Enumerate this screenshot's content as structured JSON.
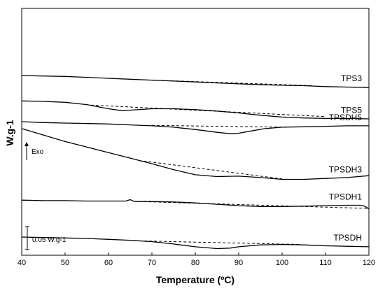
{
  "chart_data": {
    "type": "line",
    "xlabel": "Temperature (ºC)",
    "ylabel": "W.g-1",
    "xlim": [
      40,
      120
    ],
    "x_ticks": [
      40,
      50,
      60,
      70,
      80,
      90,
      100,
      110,
      120
    ],
    "y_ticks_shown": false,
    "annotations": {
      "exo": "Exo",
      "scale_bar": "0.05 W.g-1"
    },
    "series": [
      {
        "name": "TPS3",
        "offset": 0.35,
        "points": [
          [
            40,
            0.0
          ],
          [
            45,
            -0.001
          ],
          [
            50,
            -0.002
          ],
          [
            55,
            -0.004
          ],
          [
            60,
            -0.006
          ],
          [
            65,
            -0.008
          ],
          [
            70,
            -0.01
          ],
          [
            75,
            -0.012
          ],
          [
            80,
            -0.014
          ],
          [
            85,
            -0.016
          ],
          [
            90,
            -0.018
          ],
          [
            95,
            -0.02
          ],
          [
            100,
            -0.021
          ],
          [
            105,
            -0.022
          ],
          [
            110,
            -0.024
          ],
          [
            115,
            -0.025
          ],
          [
            120,
            -0.026
          ]
        ],
        "baseline": [
          [
            70,
            -0.01
          ],
          [
            107,
            -0.022
          ]
        ]
      },
      {
        "name": "TPS5",
        "offset": 0.295,
        "points": [
          [
            40,
            0.0
          ],
          [
            45,
            -0.001
          ],
          [
            50,
            -0.003
          ],
          [
            55,
            -0.008
          ],
          [
            60,
            -0.017
          ],
          [
            63,
            -0.021
          ],
          [
            65,
            -0.02
          ],
          [
            70,
            -0.017
          ],
          [
            75,
            -0.017
          ],
          [
            80,
            -0.019
          ],
          [
            85,
            -0.022
          ],
          [
            90,
            -0.026
          ],
          [
            95,
            -0.031
          ],
          [
            100,
            -0.035
          ],
          [
            105,
            -0.037
          ],
          [
            110,
            -0.038
          ],
          [
            115,
            -0.038
          ],
          [
            120,
            -0.039
          ]
        ],
        "baseline": [
          [
            56,
            -0.009
          ],
          [
            110,
            -0.034
          ]
        ]
      },
      {
        "name": "TPSDH5",
        "offset": 0.25,
        "points": [
          [
            40,
            0.0
          ],
          [
            45,
            -0.002
          ],
          [
            50,
            -0.003
          ],
          [
            55,
            -0.004
          ],
          [
            60,
            -0.005
          ],
          [
            65,
            -0.007
          ],
          [
            70,
            -0.009
          ],
          [
            75,
            -0.012
          ],
          [
            80,
            -0.017
          ],
          [
            85,
            -0.023
          ],
          [
            88,
            -0.026
          ],
          [
            90,
            -0.025
          ],
          [
            93,
            -0.02
          ],
          [
            96,
            -0.015
          ],
          [
            100,
            -0.012
          ],
          [
            105,
            -0.011
          ],
          [
            110,
            -0.01
          ],
          [
            115,
            -0.009
          ],
          [
            120,
            -0.009
          ]
        ],
        "baseline": [
          [
            70,
            -0.008
          ],
          [
            101,
            -0.012
          ]
        ]
      },
      {
        "name": "TPSDH3",
        "offset": 0.235,
        "points": [
          [
            40,
            0.0
          ],
          [
            45,
            -0.014
          ],
          [
            50,
            -0.028
          ],
          [
            55,
            -0.04
          ],
          [
            60,
            -0.052
          ],
          [
            65,
            -0.064
          ],
          [
            70,
            -0.076
          ],
          [
            75,
            -0.089
          ],
          [
            80,
            -0.1
          ],
          [
            85,
            -0.104
          ],
          [
            90,
            -0.103
          ],
          [
            95,
            -0.106
          ],
          [
            100,
            -0.11
          ],
          [
            105,
            -0.11
          ],
          [
            110,
            -0.108
          ],
          [
            115,
            -0.106
          ],
          [
            120,
            -0.102
          ]
        ],
        "baseline": [
          [
            67,
            -0.069
          ],
          [
            100,
            -0.109
          ]
        ]
      },
      {
        "name": "TPSDH1",
        "offset": 0.08,
        "points": [
          [
            40,
            0.0
          ],
          [
            45,
            -0.001
          ],
          [
            50,
            -0.001
          ],
          [
            55,
            -0.002
          ],
          [
            60,
            -0.002
          ],
          [
            64,
            -0.002
          ],
          [
            65,
            0.001
          ],
          [
            66,
            -0.003
          ],
          [
            70,
            -0.003
          ],
          [
            75,
            -0.004
          ],
          [
            80,
            -0.006
          ],
          [
            85,
            -0.009
          ],
          [
            90,
            -0.012
          ],
          [
            95,
            -0.014
          ],
          [
            100,
            -0.014
          ],
          [
            105,
            -0.013
          ],
          [
            110,
            -0.012
          ],
          [
            115,
            -0.011
          ],
          [
            118,
            -0.011
          ],
          [
            119,
            -0.013
          ],
          [
            120,
            -0.019
          ]
        ],
        "baseline": [
          [
            67,
            -0.003
          ],
          [
            120,
            -0.018
          ]
        ]
      },
      {
        "name": "TPSDH",
        "offset": 0.0,
        "points": [
          [
            40,
            0.0
          ],
          [
            45,
            -0.001
          ],
          [
            50,
            -0.002
          ],
          [
            55,
            -0.003
          ],
          [
            60,
            -0.005
          ],
          [
            65,
            -0.007
          ],
          [
            70,
            -0.01
          ],
          [
            75,
            -0.015
          ],
          [
            80,
            -0.021
          ],
          [
            85,
            -0.025
          ],
          [
            88,
            -0.024
          ],
          [
            90,
            -0.021
          ],
          [
            95,
            -0.017
          ],
          [
            100,
            -0.016
          ],
          [
            105,
            -0.017
          ],
          [
            110,
            -0.019
          ],
          [
            115,
            -0.02
          ],
          [
            120,
            -0.021
          ]
        ],
        "baseline": [
          [
            66,
            -0.008
          ],
          [
            104,
            -0.016
          ]
        ]
      }
    ]
  }
}
